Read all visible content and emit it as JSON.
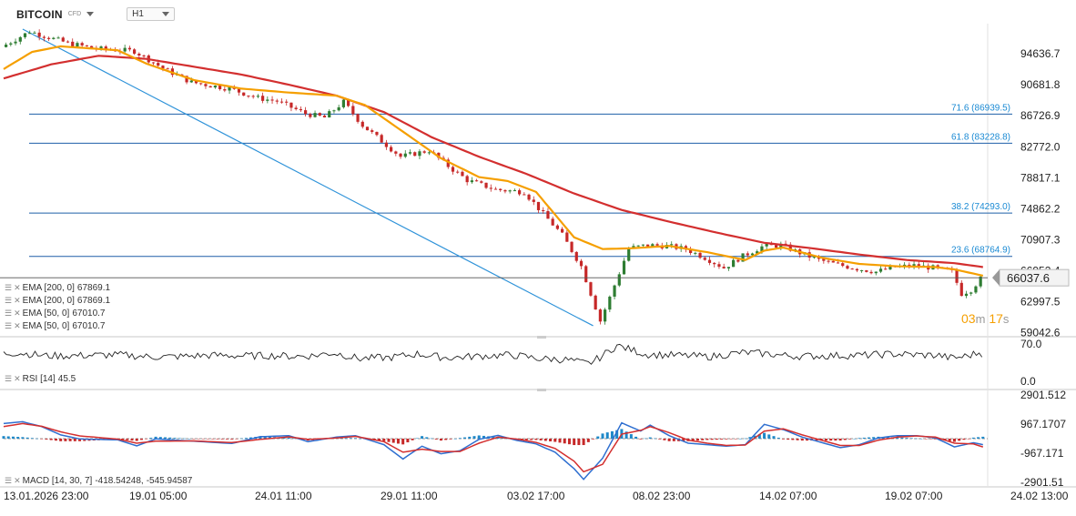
{
  "header": {
    "symbol": "BITCOIN",
    "market_type": "CFD",
    "timeframe": "H1"
  },
  "timer": {
    "minutes": "03",
    "minutes_unit": "m",
    "seconds": "17",
    "seconds_unit": "s"
  },
  "legends": {
    "ema": [
      {
        "label": "EMA [200, 0]",
        "value": "67869.1"
      },
      {
        "label": "EMA [200, 0]",
        "value": "67869.1"
      },
      {
        "label": "EMA [50, 0]",
        "value": "67010.7"
      },
      {
        "label": "EMA [50, 0]",
        "value": "67010.7"
      }
    ],
    "rsi": {
      "label": "RSI [14]",
      "value": "45.5"
    },
    "macd": {
      "label": "MACD [14, 30, 7]",
      "value1": "-418.54248,",
      "value2": "-545.94587"
    }
  },
  "colors": {
    "up": "#2e7d32",
    "down": "#c62828",
    "ema200": "#d32f2f",
    "ema50": "#f59f00",
    "fib": "#1e5fa8",
    "trend": "#2f93d9",
    "hist_pos": "#1e88c8",
    "hist_neg": "#c62828",
    "macd": "#2f6fd0",
    "signal": "#d32f2f"
  },
  "chart_data": [
    {
      "type": "candlestick",
      "x_ticks": [
        "13.01.2026 23:00",
        "19.01 05:00",
        "24.01 11:00",
        "29.01 11:00",
        "03.02 17:00",
        "08.02 23:00",
        "14.02 07:00",
        "19.02 07:00",
        "24.02 13:00"
      ],
      "y_ticks": [
        "94636.7",
        "90681.8",
        "86726.9",
        "82772.0",
        "78817.1",
        "74862.2",
        "70907.3",
        "66952.4",
        "62997.5",
        "59042.6"
      ],
      "ylim": [
        58500,
        98500
      ],
      "current_price": "66037.6",
      "current_price_value": 66037.6,
      "price_path": [
        [
          0,
          95500
        ],
        [
          3,
          97500
        ],
        [
          7,
          96000
        ],
        [
          10,
          95300
        ],
        [
          14,
          95000
        ],
        [
          17,
          92800
        ],
        [
          20,
          91000
        ],
        [
          24,
          90200
        ],
        [
          27,
          89000
        ],
        [
          29,
          88600
        ],
        [
          32,
          87000
        ],
        [
          34,
          86500
        ],
        [
          36,
          88500
        ],
        [
          38,
          85500
        ],
        [
          42,
          81500
        ],
        [
          45,
          82300
        ],
        [
          47,
          80300
        ],
        [
          49,
          78500
        ],
        [
          52,
          77300
        ],
        [
          55,
          77000
        ],
        [
          57,
          74200
        ],
        [
          59,
          71500
        ],
        [
          61,
          67500
        ],
        [
          63,
          60500
        ],
        [
          64,
          63500
        ],
        [
          66,
          69800
        ],
        [
          68,
          70200
        ],
        [
          70,
          70100
        ],
        [
          72,
          69700
        ],
        [
          74,
          68600
        ],
        [
          76,
          67300
        ],
        [
          78,
          68800
        ],
        [
          80,
          70000
        ],
        [
          82,
          70200
        ],
        [
          84,
          69200
        ],
        [
          86,
          68300
        ],
        [
          88,
          67700
        ],
        [
          90,
          67200
        ],
        [
          92,
          66800
        ],
        [
          94,
          67400
        ],
        [
          96,
          67600
        ],
        [
          98,
          67300
        ],
        [
          100,
          66800
        ],
        [
          101,
          64000
        ],
        [
          102,
          64500
        ],
        [
          103,
          65900
        ]
      ],
      "ema200_path": [
        [
          0,
          91500
        ],
        [
          5,
          93300
        ],
        [
          10,
          94400
        ],
        [
          15,
          94000
        ],
        [
          20,
          93000
        ],
        [
          25,
          92000
        ],
        [
          30,
          90700
        ],
        [
          35,
          89300
        ],
        [
          40,
          87200
        ],
        [
          45,
          84000
        ],
        [
          50,
          81500
        ],
        [
          55,
          79300
        ],
        [
          60,
          76800
        ],
        [
          65,
          74700
        ],
        [
          70,
          73200
        ],
        [
          75,
          71800
        ],
        [
          80,
          70500
        ],
        [
          85,
          69800
        ],
        [
          90,
          69000
        ],
        [
          95,
          68300
        ],
        [
          100,
          67900
        ],
        [
          103,
          67400
        ]
      ],
      "ema50_path": [
        [
          0,
          92700
        ],
        [
          3,
          94900
        ],
        [
          6,
          95600
        ],
        [
          12,
          95100
        ],
        [
          15,
          93400
        ],
        [
          20,
          91300
        ],
        [
          25,
          90200
        ],
        [
          30,
          89700
        ],
        [
          35,
          89300
        ],
        [
          38,
          88100
        ],
        [
          42,
          84700
        ],
        [
          46,
          81300
        ],
        [
          50,
          78900
        ],
        [
          53,
          78400
        ],
        [
          56,
          77000
        ],
        [
          60,
          71200
        ],
        [
          63,
          69700
        ],
        [
          66,
          69800
        ],
        [
          70,
          70100
        ],
        [
          74,
          69300
        ],
        [
          78,
          68300
        ],
        [
          80,
          69500
        ],
        [
          82,
          69900
        ],
        [
          86,
          68600
        ],
        [
          90,
          67800
        ],
        [
          94,
          67500
        ],
        [
          98,
          67400
        ],
        [
          100,
          67100
        ],
        [
          103,
          66300
        ]
      ],
      "fib_levels": [
        {
          "ratio": "71.6",
          "price": "86939.5",
          "value": 86939.5
        },
        {
          "ratio": "61.8",
          "price": "83228.8",
          "value": 83228.8
        },
        {
          "ratio": "38.2",
          "price": "74293.0",
          "value": 74293.0
        },
        {
          "ratio": "23.6",
          "price": "68764.9",
          "value": 68764.9
        }
      ],
      "trendline": [
        [
          2,
          97800
        ],
        [
          62,
          59900
        ]
      ]
    },
    {
      "type": "line",
      "name": "RSI [14]",
      "y_ticks": [
        "70.0",
        "0.0"
      ],
      "ylim": [
        -15,
        82
      ],
      "last_value": 45.5
    },
    {
      "type": "bar",
      "name": "MACD [14, 30, 7]",
      "y_ticks": [
        "2901.512",
        "967.1707",
        "-967.171",
        "-2901.51"
      ],
      "ylim": [
        -3200,
        3200
      ],
      "macd_value": -418.54248,
      "signal_value": -545.94587,
      "macd_path": [
        [
          0,
          1000
        ],
        [
          2,
          1120
        ],
        [
          4,
          800
        ],
        [
          6,
          250
        ],
        [
          8,
          -20
        ],
        [
          12,
          -80
        ],
        [
          14,
          -480
        ],
        [
          16,
          -20
        ],
        [
          20,
          -170
        ],
        [
          24,
          -320
        ],
        [
          27,
          130
        ],
        [
          30,
          200
        ],
        [
          32,
          -200
        ],
        [
          35,
          100
        ],
        [
          37,
          200
        ],
        [
          40,
          -400
        ],
        [
          42,
          -1350
        ],
        [
          44,
          -500
        ],
        [
          46,
          -1000
        ],
        [
          48,
          -800
        ],
        [
          50,
          -50
        ],
        [
          52,
          220
        ],
        [
          54,
          -120
        ],
        [
          56,
          -350
        ],
        [
          58,
          -900
        ],
        [
          60,
          -2000
        ],
        [
          61,
          -2700
        ],
        [
          63,
          -1300
        ],
        [
          65,
          1050
        ],
        [
          67,
          500
        ],
        [
          68,
          900
        ],
        [
          70,
          200
        ],
        [
          72,
          -300
        ],
        [
          74,
          -400
        ],
        [
          76,
          -500
        ],
        [
          78,
          -400
        ],
        [
          80,
          950
        ],
        [
          82,
          600
        ],
        [
          84,
          100
        ],
        [
          86,
          -250
        ],
        [
          88,
          -600
        ],
        [
          90,
          -400
        ],
        [
          92,
          50
        ],
        [
          94,
          200
        ],
        [
          96,
          200
        ],
        [
          98,
          50
        ],
        [
          100,
          -550
        ],
        [
          102,
          -270
        ],
        [
          103,
          -400
        ]
      ],
      "signal_path": [
        [
          0,
          800
        ],
        [
          2,
          1000
        ],
        [
          4,
          820
        ],
        [
          6,
          450
        ],
        [
          8,
          180
        ],
        [
          12,
          -30
        ],
        [
          14,
          -300
        ],
        [
          16,
          -170
        ],
        [
          20,
          -150
        ],
        [
          24,
          -260
        ],
        [
          27,
          -50
        ],
        [
          30,
          120
        ],
        [
          32,
          -50
        ],
        [
          35,
          40
        ],
        [
          37,
          150
        ],
        [
          40,
          -200
        ],
        [
          42,
          -900
        ],
        [
          44,
          -700
        ],
        [
          46,
          -850
        ],
        [
          48,
          -850
        ],
        [
          50,
          -300
        ],
        [
          52,
          100
        ],
        [
          54,
          -30
        ],
        [
          56,
          -250
        ],
        [
          58,
          -650
        ],
        [
          60,
          -1500
        ],
        [
          61,
          -2200
        ],
        [
          63,
          -1700
        ],
        [
          65,
          300
        ],
        [
          67,
          550
        ],
        [
          68,
          800
        ],
        [
          70,
          400
        ],
        [
          72,
          -100
        ],
        [
          74,
          -300
        ],
        [
          76,
          -450
        ],
        [
          78,
          -420
        ],
        [
          80,
          500
        ],
        [
          82,
          650
        ],
        [
          84,
          250
        ],
        [
          86,
          -100
        ],
        [
          88,
          -450
        ],
        [
          90,
          -450
        ],
        [
          92,
          -100
        ],
        [
          94,
          100
        ],
        [
          96,
          180
        ],
        [
          98,
          100
        ],
        [
          100,
          -300
        ],
        [
          102,
          -350
        ],
        [
          103,
          -550
        ]
      ]
    }
  ]
}
